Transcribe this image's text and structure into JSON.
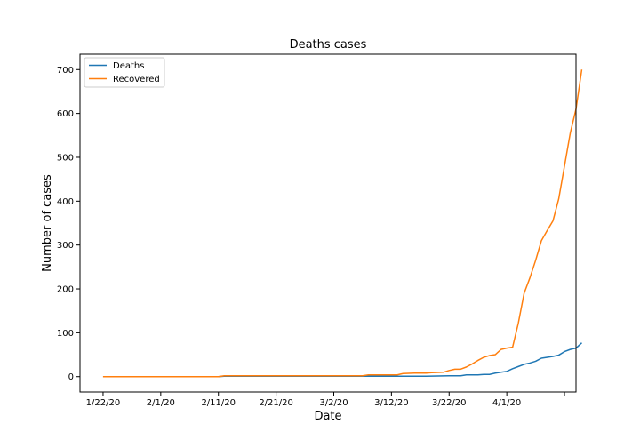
{
  "chart_data": {
    "type": "line",
    "title": "Deaths cases",
    "xlabel": "Date",
    "ylabel": "Number of cases",
    "x_ticks": [
      "1/22/20",
      "2/1/20",
      "2/11/20",
      "2/21/20",
      "3/2/20",
      "3/12/20",
      "3/22/20",
      "4/1/20",
      ""
    ],
    "x_tick_days": [
      0,
      10,
      20,
      30,
      40,
      50,
      60,
      70,
      80
    ],
    "xlim": [
      -4,
      82
    ],
    "y_ticks": [
      0,
      100,
      200,
      300,
      400,
      500,
      600,
      700
    ],
    "ylim": [
      -35,
      735
    ],
    "legend": {
      "placement": "upper-left"
    },
    "series": [
      {
        "name": "Deaths",
        "color": "#1f77b4",
        "points": [
          [
            0,
            0
          ],
          [
            20,
            0
          ],
          [
            21,
            1
          ],
          [
            50,
            1
          ],
          [
            55,
            1
          ],
          [
            56,
            1
          ],
          [
            60,
            2
          ],
          [
            62,
            2
          ],
          [
            63,
            4
          ],
          [
            65,
            4
          ],
          [
            66,
            5
          ],
          [
            67,
            5
          ],
          [
            68,
            8
          ],
          [
            69,
            10
          ],
          [
            70,
            12
          ],
          [
            71,
            18
          ],
          [
            72,
            23
          ],
          [
            73,
            28
          ],
          [
            74,
            31
          ],
          [
            75,
            35
          ],
          [
            76,
            42
          ],
          [
            77,
            44
          ],
          [
            78,
            46
          ],
          [
            79,
            49
          ],
          [
            80,
            57
          ],
          [
            81,
            62
          ],
          [
            82,
            65
          ],
          [
            83,
            77
          ]
        ]
      },
      {
        "name": "Recovered",
        "color": "#ff7f0e",
        "points": [
          [
            0,
            0
          ],
          [
            20,
            0
          ],
          [
            21,
            2
          ],
          [
            45,
            2
          ],
          [
            46,
            4
          ],
          [
            51,
            4
          ],
          [
            52,
            7
          ],
          [
            54,
            8
          ],
          [
            56,
            8
          ],
          [
            57,
            9
          ],
          [
            59,
            10
          ],
          [
            60,
            14
          ],
          [
            61,
            17
          ],
          [
            62,
            17
          ],
          [
            63,
            22
          ],
          [
            64,
            29
          ],
          [
            65,
            37
          ],
          [
            66,
            44
          ],
          [
            67,
            48
          ],
          [
            68,
            50
          ],
          [
            69,
            62
          ],
          [
            70,
            65
          ],
          [
            71,
            67
          ],
          [
            72,
            122
          ],
          [
            73,
            190
          ],
          [
            74,
            225
          ],
          [
            75,
            265
          ],
          [
            76,
            310
          ],
          [
            77,
            333
          ],
          [
            78,
            355
          ],
          [
            79,
            405
          ],
          [
            80,
            480
          ],
          [
            81,
            555
          ],
          [
            82,
            610
          ],
          [
            83,
            700
          ]
        ]
      }
    ]
  }
}
